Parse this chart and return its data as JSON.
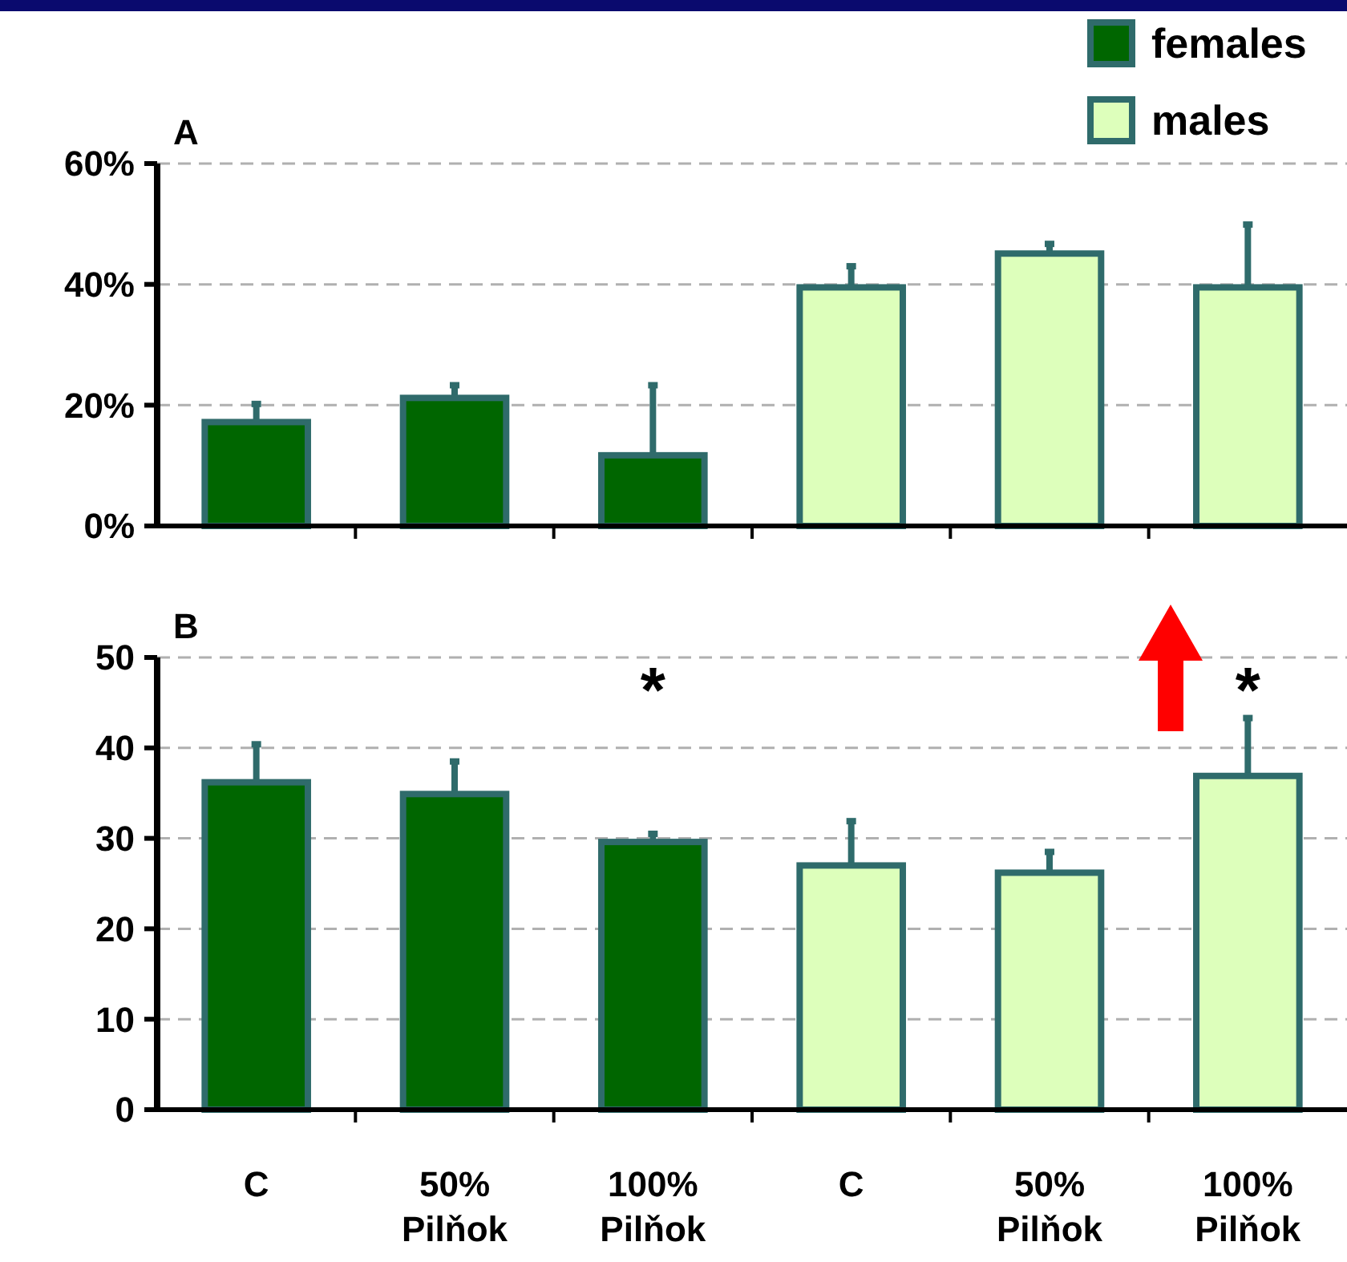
{
  "chart_data": [
    {
      "type": "bar",
      "title": "A",
      "categories": [
        null,
        null,
        null,
        null,
        null,
        null
      ],
      "ylim": [
        0,
        60
      ],
      "yticks": [
        {
          "value": 0,
          "label": "0%"
        },
        {
          "value": 20,
          "label": "20%"
        },
        {
          "value": 40,
          "label": "40%"
        },
        {
          "value": 60,
          "label": "60%"
        }
      ],
      "grid": "y",
      "legend": "top right",
      "tick_labels": "y",
      "series": [
        {
          "name": "females",
          "color": "#006600",
          "values": [
            17.2,
            21.2,
            11.7,
            null,
            null,
            null
          ],
          "errors": [
            [
              17.2,
              20.2
            ],
            [
              21.2,
              23.3
            ],
            [
              11.7,
              23.3
            ],
            null,
            null,
            null
          ]
        },
        {
          "name": "males",
          "color": "#ddffbb",
          "values": [
            null,
            null,
            null,
            39.5,
            45.1,
            39.5
          ],
          "errors": [
            null,
            null,
            null,
            [
              39.5,
              43
            ],
            [
              45.1,
              46.7
            ],
            [
              39.5,
              49.9
            ]
          ]
        }
      ]
    },
    {
      "type": "bar",
      "title": "B",
      "categories": [
        "C",
        "50% Pilňok",
        "100% Pilňok",
        "C",
        "50% Pilňok",
        "100% Pilňok"
      ],
      "ylim": [
        0,
        50
      ],
      "yticks": [
        0,
        10,
        20,
        30,
        40,
        50
      ],
      "grid": "y",
      "annotations": [
        "*",
        "*"
      ],
      "series": [
        {
          "color": "#006600",
          "values": [
            36.2,
            34.9,
            29.6,
            null,
            null,
            null
          ],
          "errors": [
            [
              36.2,
              40.4
            ],
            [
              34.9,
              38.5
            ],
            [
              29.6,
              30.5
            ],
            null,
            null,
            null
          ]
        },
        {
          "color": "#ddffbb",
          "values": [
            null,
            null,
            null,
            27,
            26.2,
            36.9
          ],
          "errors": [
            null,
            null,
            null,
            [
              27,
              31.9
            ],
            [
              26.2,
              28.5
            ],
            [
              36.9,
              43.3
            ]
          ]
        }
      ]
    }
  ]
}
